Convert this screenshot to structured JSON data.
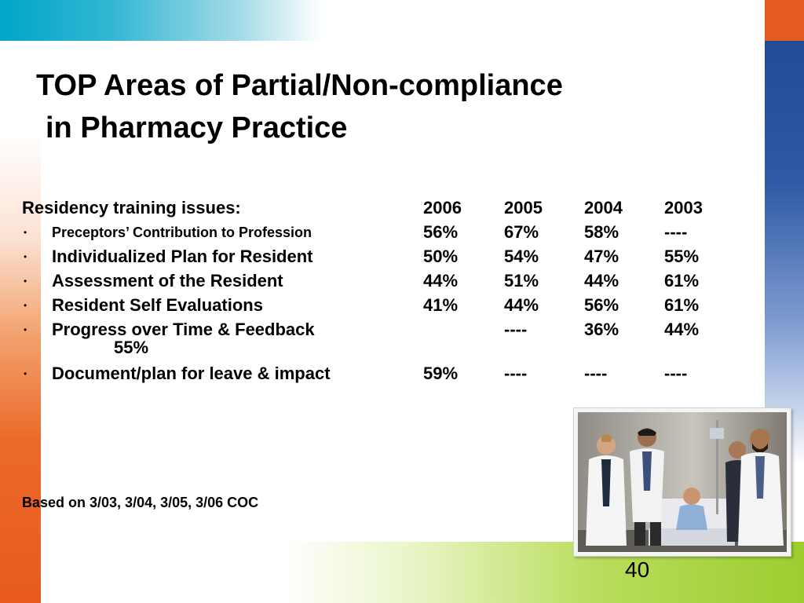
{
  "title": {
    "line1": "TOP Areas of Partial/Non-compliance",
    "line2": "in Pharmacy Practice"
  },
  "table": {
    "heading": "Residency training issues:",
    "years": [
      "2006",
      "2005",
      "2004",
      "2003"
    ],
    "rows": [
      {
        "label": "Preceptors’ Contribution to Profession",
        "values": [
          "56%",
          "67%",
          "58%",
          "----"
        ]
      },
      {
        "label": "Individualized Plan for Resident",
        "values": [
          "50%",
          "54%",
          "47%",
          "55%"
        ]
      },
      {
        "label": "Assessment of the Resident",
        "values": [
          "44%",
          "51%",
          "44%",
          "61%"
        ]
      },
      {
        "label": "Resident Self Evaluations",
        "values": [
          "41%",
          "44%",
          "56%",
          "61%"
        ]
      },
      {
        "label": "Progress over Time & Feedback",
        "values": [
          "",
          "----",
          "36%",
          "44%"
        ],
        "wrapped_value": "55%"
      },
      {
        "label": "Document/plan for leave & impact",
        "values": [
          "59%",
          "----",
          "----",
          "----"
        ]
      }
    ]
  },
  "footnote": "Based on 3/03, 3/04, 3/05, 3/06 COC",
  "slide_number": "40",
  "bullet_char": "•",
  "colors": {
    "accent_orange": "#e35a22",
    "accent_blue": "#234a97",
    "accent_teal": "#00a6c8",
    "accent_green": "#9dcd2f"
  }
}
